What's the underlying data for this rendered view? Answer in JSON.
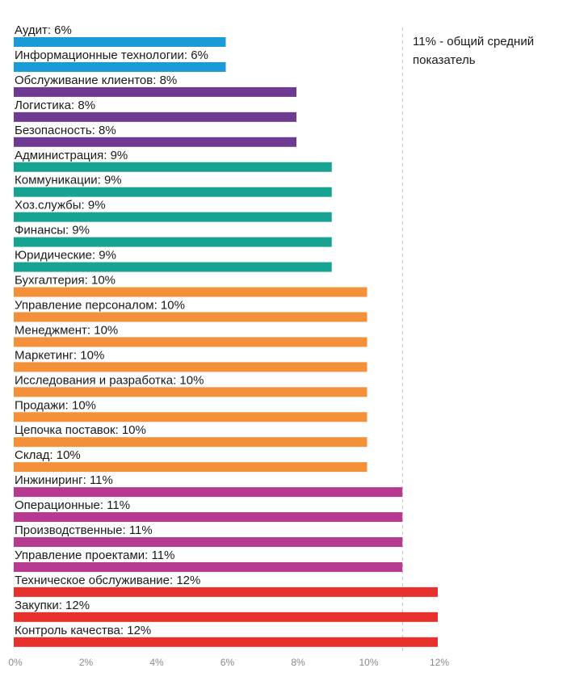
{
  "chart_data": {
    "type": "bar",
    "orientation": "horizontal",
    "categories": [
      "Аудит",
      "Информационные технологии",
      "Обслуживание клиентов",
      "Логистика",
      "Безопасность",
      "Администрация",
      "Коммуникации",
      "Хоз.службы",
      "Финансы",
      "Юридические",
      "Бухгалтерия",
      "Управление персоналом",
      "Менеджмент",
      "Маркетинг",
      "Исследования и разработка",
      "Продажи",
      "Цепочка поставок",
      "Склад",
      "Инжиниринг",
      "Операционные",
      "Производственные",
      "Управление проектами",
      "Техническое обслуживание",
      "Закупки",
      "Контроль качества"
    ],
    "values": [
      6,
      6,
      8,
      8,
      8,
      9,
      9,
      9,
      9,
      9,
      10,
      10,
      10,
      10,
      10,
      10,
      10,
      10,
      11,
      11,
      11,
      11,
      12,
      12,
      12
    ],
    "bar_labels": [
      "Аудит: 6%",
      "Информационные технологии: 6%",
      "Обслуживание клиентов: 8%",
      "Логистика: 8%",
      "Безопасность: 8%",
      "Администрация: 9%",
      "Коммуникации: 9%",
      "Хоз.службы: 9%",
      "Финансы: 9%",
      "Юридические: 9%",
      "Бухгалтерия: 10%",
      "Управление персоналом: 10%",
      "Менеджмент: 10%",
      "Маркетинг: 10%",
      "Исследования и разработка: 10%",
      "Продажи: 10%",
      "Цепочка поставок: 10%",
      "Склад: 10%",
      "Инжиниринг: 11%",
      "Операционные: 11%",
      "Производственные: 11%",
      "Управление проектами: 11%",
      "Техническое обслуживание: 12%",
      "Закупки: 12%",
      "Контроль качества: 12%"
    ],
    "value_colors": {
      "6": "#1a9ad6",
      "8": "#6f3a92",
      "9": "#16a391",
      "10": "#f5903a",
      "11": "#b73a91",
      "12": "#e8312d"
    },
    "x_ticks": [
      "0%",
      "2%",
      "4%",
      "6%",
      "8%",
      "10%",
      "12%"
    ],
    "x_tick_values": [
      0,
      2,
      4,
      6,
      8,
      10,
      12
    ],
    "xlim": [
      0,
      12
    ],
    "reference_line": {
      "value": 11,
      "label": "11% - общий средний показатель",
      "color": "#bbbbbb"
    },
    "grid": false,
    "title": "",
    "xlabel": "",
    "ylabel": ""
  }
}
